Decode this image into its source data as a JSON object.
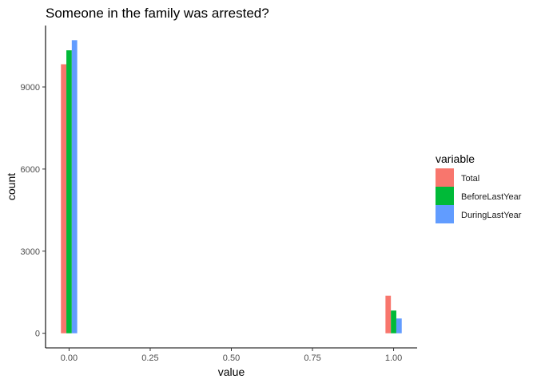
{
  "chart_data": {
    "type": "bar",
    "title": "Someone in the family was arrested?",
    "xlabel": "value",
    "ylabel": "count",
    "x_ticks": [
      "0.00",
      "0.25",
      "0.50",
      "0.75",
      "1.00"
    ],
    "x_tick_values": [
      0,
      0.25,
      0.5,
      0.75,
      1.0
    ],
    "y_ticks": [
      "0",
      "3000",
      "6000",
      "9000"
    ],
    "y_tick_values": [
      0,
      3000,
      6000,
      9000
    ],
    "xlim": [
      -0.0725,
      1.0725
    ],
    "ylim": [
      -535,
      11245
    ],
    "grid": false,
    "legend_position": "right",
    "legend_title": "variable",
    "categories": [
      0,
      1
    ],
    "series": [
      {
        "name": "Total",
        "color": "#F8766D",
        "values": [
          9830,
          1370
        ]
      },
      {
        "name": "BeforeLastYear",
        "color": "#00BA38",
        "values": [
          10340,
          830
        ]
      },
      {
        "name": "DuringLastYear",
        "color": "#619CFF",
        "values": [
          10710,
          540
        ]
      }
    ]
  }
}
